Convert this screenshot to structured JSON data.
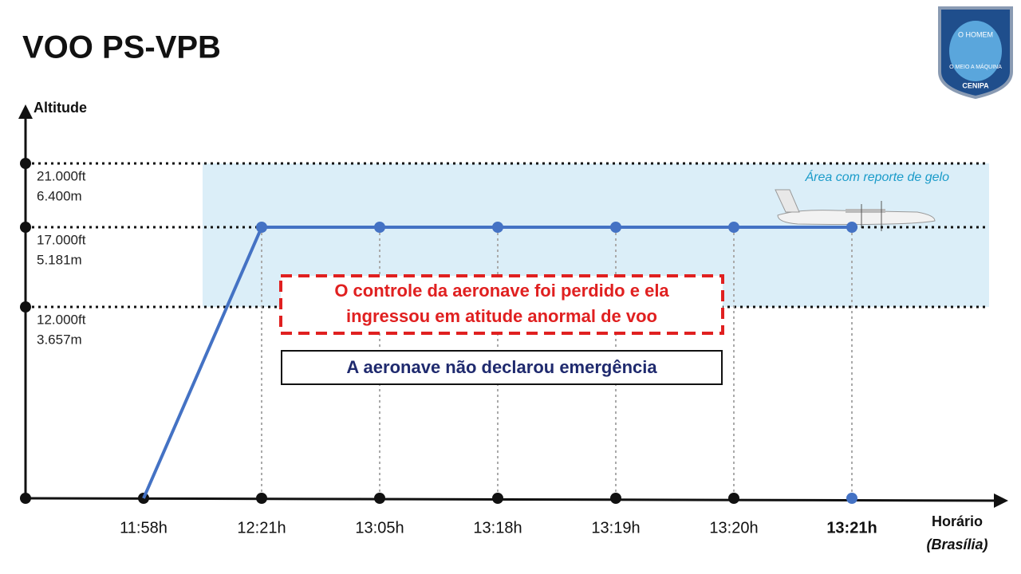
{
  "chart_data": {
    "type": "line",
    "title": "VOO PS-VPB",
    "badge": {
      "top": "O HOMEM",
      "middle": "O MEIO A MÁQUINA",
      "bottom": "CENIPA"
    },
    "ylabel": "Altitude",
    "xlabel": "Horário",
    "xlabel_sub": "(Brasília)",
    "categories": [
      "11:58h",
      "12:21h",
      "13:05h",
      "13:18h",
      "13:19h",
      "13:20h",
      "13:21h"
    ],
    "values": [
      0,
      17000,
      17000,
      17000,
      17000,
      17000,
      17000
    ],
    "color": "#4472c4",
    "highlight_color": "#4472c4",
    "ylim": [
      0,
      24000
    ],
    "yticks": [
      {
        "value": 21000,
        "label": "21.000ft"
      },
      {
        "value": 17000,
        "label": "17.000ft"
      },
      {
        "value": 12000,
        "label": "12.000ft"
      }
    ],
    "y2lim": [
      0,
      7315
    ],
    "y2ticks": [
      {
        "value": 6400,
        "label": "6.400m"
      },
      {
        "value": 5181,
        "label": "5.181m"
      },
      {
        "value": 3657,
        "label": "3.657m"
      }
    ],
    "grid": true,
    "ice_band": [
      12000,
      21000
    ],
    "ice_label": "Área com reporte de gelo",
    "ice_color": "#dbeef8",
    "annotations": [
      "O controle da aeronave foi perdido e ela",
      "ingressou em atitude anormal de voo",
      "A aeronave não declarou emergência"
    ]
  }
}
